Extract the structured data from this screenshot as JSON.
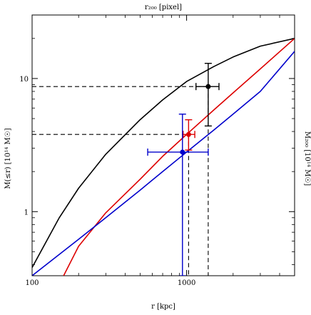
{
  "chart_data": {
    "type": "line",
    "top_axis_label": "r₂₀₀ [pixel]",
    "xlabel": "r [kpc]",
    "ylabel": "M(≤r) [10¹⁴ M☉]",
    "right_axis_label": "M₂₀₀ [10¹⁴ M☉]",
    "xscale": "log",
    "yscale": "log",
    "xlim": [
      100,
      5000
    ],
    "ylim": [
      0.33,
      30
    ],
    "x_ticks": [
      {
        "value": 100,
        "label": "100"
      },
      {
        "value": 1000,
        "label": "1000"
      }
    ],
    "y_ticks": [
      {
        "value": 1,
        "label": "1"
      },
      {
        "value": 10,
        "label": "10"
      }
    ],
    "grid": false,
    "legend": "none",
    "series": [
      {
        "color": "#000000",
        "x": [
          100,
          150,
          200,
          300,
          500,
          700,
          1000,
          1500,
          2000,
          3000,
          5000
        ],
        "y": [
          0.38,
          0.9,
          1.5,
          2.7,
          4.9,
          6.9,
          9.5,
          12.3,
          14.5,
          17.5,
          20.0
        ]
      },
      {
        "color": "#dd0000",
        "x": [
          160,
          200,
          300,
          500,
          700,
          1000,
          1500,
          2000,
          3000,
          5000
        ],
        "y": [
          0.33,
          0.55,
          0.98,
          1.75,
          2.6,
          3.8,
          5.8,
          7.8,
          11.8,
          20.0
        ]
      },
      {
        "color": "#0000cc",
        "x": [
          100,
          200,
          300,
          500,
          700,
          1000,
          1500,
          2000,
          3000,
          5000
        ],
        "y": [
          0.33,
          0.62,
          0.9,
          1.45,
          2.0,
          2.8,
          4.1,
          5.4,
          8.0,
          16.0
        ]
      }
    ],
    "points": [
      {
        "color": "#000000",
        "x": 1380,
        "y": 8.7,
        "xerr": [
          1150,
          1620
        ],
        "yerr": [
          4.4,
          13.0
        ]
      },
      {
        "color": "#dd0000",
        "x": 1030,
        "y": 3.8,
        "xerr": [
          950,
          1130
        ],
        "yerr": [
          2.9,
          4.9
        ]
      },
      {
        "color": "#0000cc",
        "x": 940,
        "y": 2.8,
        "xerr": [
          560,
          1380
        ],
        "yerr": [
          0.33,
          5.4
        ]
      }
    ],
    "guides": [
      {
        "x": 1380,
        "y": 8.7
      },
      {
        "x": 1030,
        "y": 3.8
      }
    ]
  }
}
